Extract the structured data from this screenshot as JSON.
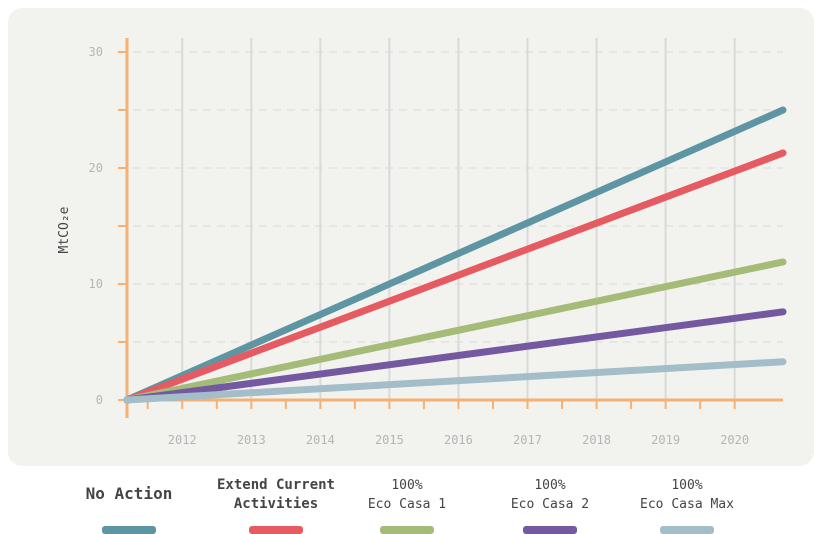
{
  "chart_data": {
    "type": "line",
    "ylabel": "MtCO₂e",
    "ylim": [
      0,
      30
    ],
    "yticks": [
      0,
      10,
      20,
      30
    ],
    "xlim": [
      2011.2,
      2020.7
    ],
    "xticks": [
      2012,
      2013,
      2014,
      2015,
      2016,
      2017,
      2018,
      2019,
      2020
    ],
    "grid": true,
    "legend_position": "bottom",
    "series": [
      {
        "name": "No Action",
        "color": "#5d95a3",
        "x": [
          2011.2,
          2020.7
        ],
        "y": [
          0,
          25
        ]
      },
      {
        "name": "Extend Current Activities",
        "color": "#e65a61",
        "x": [
          2011.2,
          2020.7
        ],
        "y": [
          0,
          21.3
        ]
      },
      {
        "name": "100% Eco Casa 1",
        "color": "#a4bc78",
        "x": [
          2011.2,
          2020.7
        ],
        "y": [
          0,
          11.9
        ]
      },
      {
        "name": "100% Eco Casa 2",
        "color": "#7459a0",
        "x": [
          2011.2,
          2020.7
        ],
        "y": [
          0,
          7.6
        ]
      },
      {
        "name": "100% Eco Casa Max",
        "color": "#a3bec8",
        "x": [
          2011.2,
          2020.7
        ],
        "y": [
          0,
          3.3
        ]
      }
    ]
  },
  "legend": [
    {
      "label": "No Action",
      "style": "big"
    },
    {
      "label": "Extend Current\nActivities",
      "style": "bold"
    },
    {
      "label": "100%\nEco Casa 1",
      "style": "normal"
    },
    {
      "label": "100%\nEco Casa 2",
      "style": "normal"
    },
    {
      "label": "100%\nEco Casa Max",
      "style": "normal"
    }
  ],
  "colors": {
    "axis": "#f5b072",
    "grid": "#d9d9d9",
    "tick_text": "#b5b5b5",
    "panel": "#f2f3ef"
  }
}
